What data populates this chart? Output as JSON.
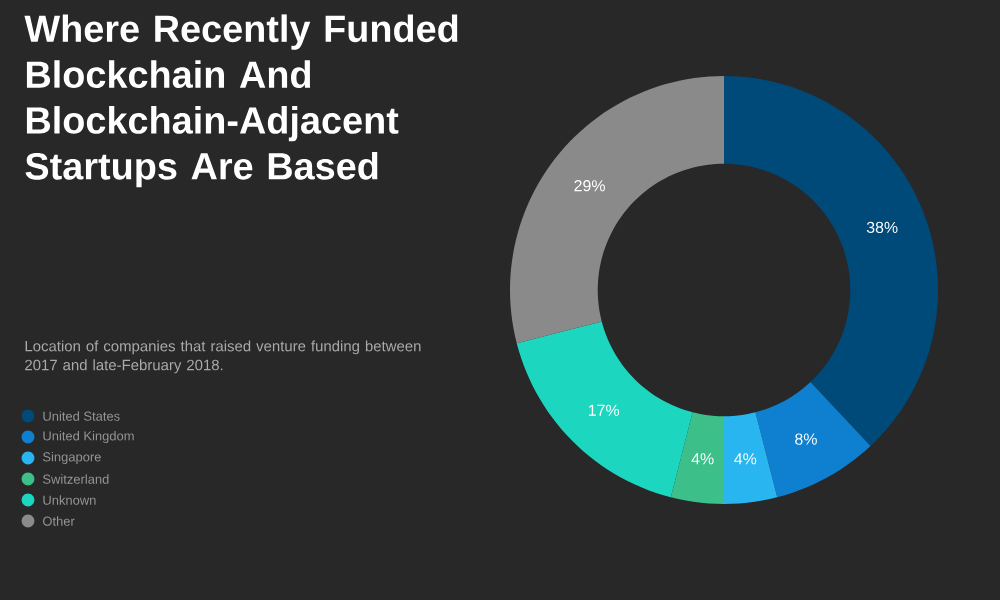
{
  "chart_data": {
    "type": "donut",
    "title": "Where Recently Funded Blockchain And Blockchain-Adjacent Startups Are Based",
    "subtitle": "Location of companies that raised venture funding between 2017 and late-February 2018.",
    "categories": [
      "United States",
      "United Kingdom",
      "Singapore",
      "Switzerland",
      "Unknown",
      "Other"
    ],
    "values": [
      38,
      8,
      4,
      4,
      17,
      29
    ],
    "colors": [
      "#004a7a",
      "#0f7fd0",
      "#29b6f0",
      "#3dbf8a",
      "#1dd6c0",
      "#8a8a8a"
    ],
    "value_labels": [
      "38%",
      "8%",
      "4%",
      "4%",
      "17%",
      "29%"
    ],
    "legend": "left"
  }
}
